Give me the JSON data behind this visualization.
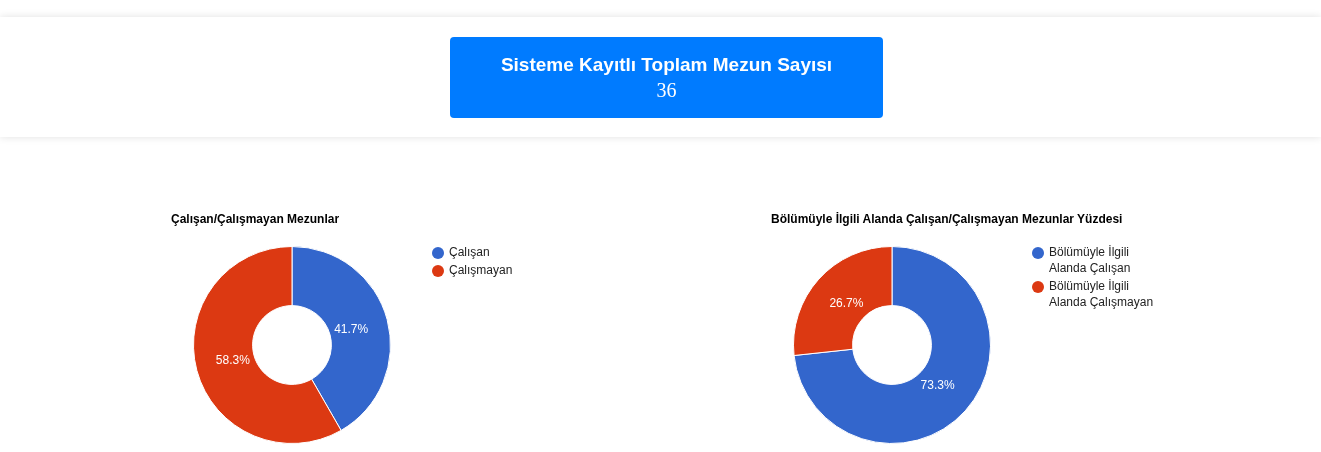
{
  "chart_data": [
    {
      "type": "other",
      "title": "Sisteme Kayıtlı Toplam Mezun Sayısı",
      "annotations": [
        "36"
      ]
    },
    {
      "type": "donut",
      "title": "Çalışan/Çalışmayan Mezunlar",
      "categories": [
        "Çalışan",
        "Çalışmayan"
      ],
      "values": [
        41.7,
        58.3
      ],
      "colors": [
        "#3366cc",
        "#dc3912"
      ],
      "value_labels": [
        "41.7%",
        "58.3%"
      ],
      "legend": "right"
    },
    {
      "type": "donut",
      "title": "Bölümüyle İlgili Alanda Çalışan/Çalışmayan Mezunlar Yüzdesi",
      "categories": [
        "Bölümüyle İlgili Alanda Çalışan",
        "Bölümüyle İlgili Alanda Çalışmayan"
      ],
      "values": [
        73.3,
        26.7
      ],
      "colors": [
        "#3366cc",
        "#dc3912"
      ],
      "value_labels": [
        "73.3%",
        "26.7%"
      ],
      "legend": "right"
    }
  ]
}
